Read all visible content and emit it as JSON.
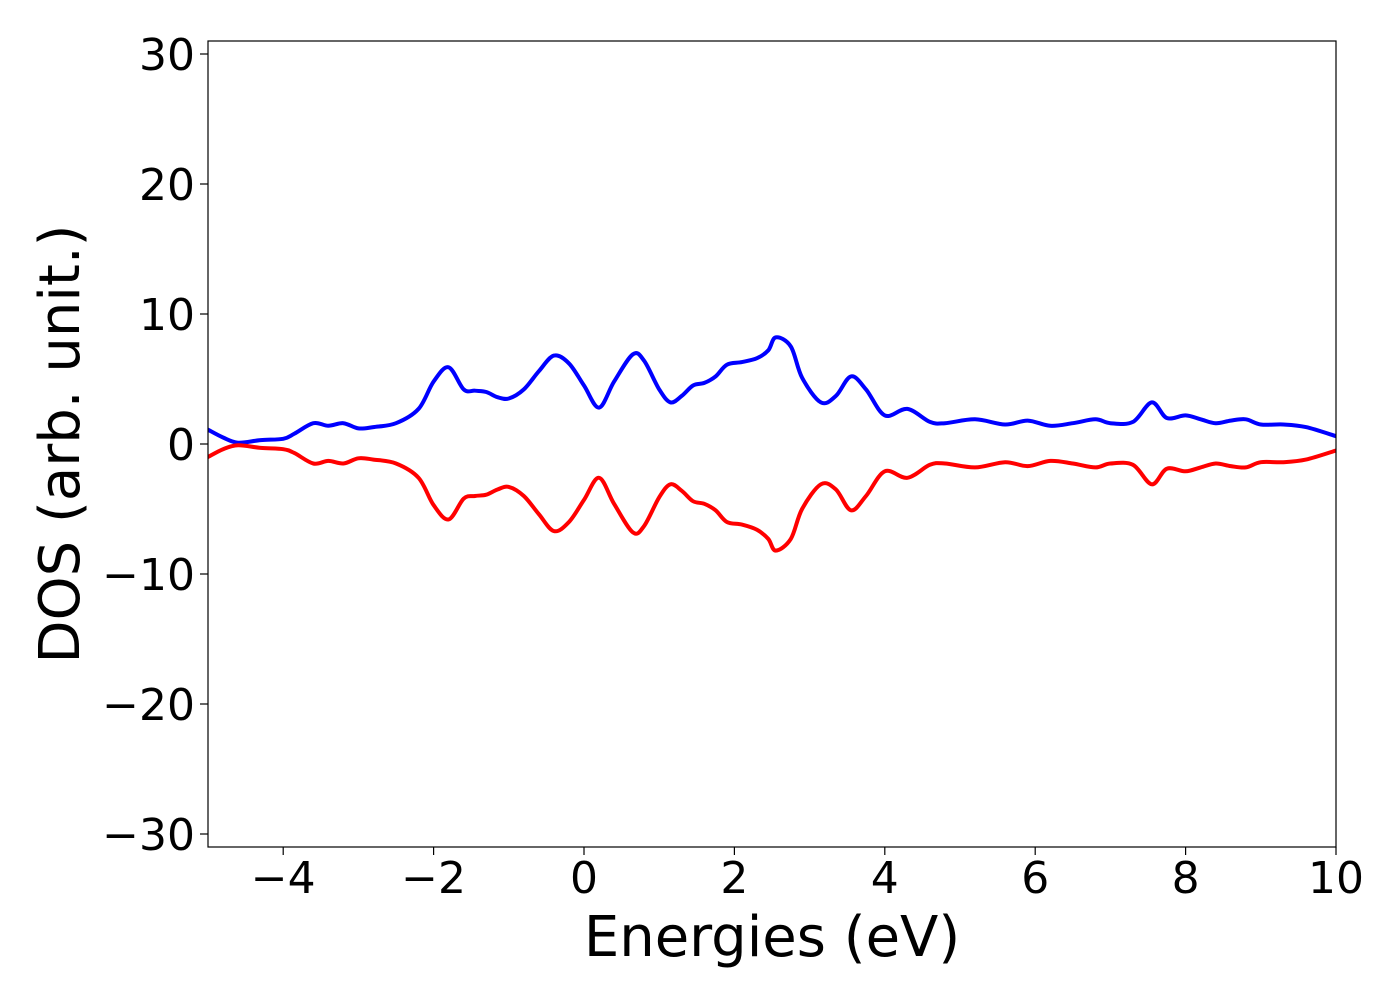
{
  "chart_data": {
    "type": "line",
    "title": "",
    "xlabel": "Energies (eV)",
    "ylabel": "DOS (arb. unit.)",
    "xlim": [
      -5,
      10
    ],
    "ylim": [
      -31,
      31
    ],
    "xticks": [
      -4,
      -2,
      0,
      2,
      4,
      6,
      8,
      10
    ],
    "xtick_labels": [
      "−4",
      "−2",
      "0",
      "2",
      "4",
      "6",
      "8",
      "10"
    ],
    "yticks": [
      -30,
      -20,
      -10,
      0,
      10,
      20,
      30
    ],
    "ytick_labels": [
      "−30",
      "−20",
      "−10",
      "0",
      "10",
      "20",
      "30"
    ],
    "grid": false,
    "legend": "none",
    "series": [
      {
        "color": "#0000ff",
        "x": [
          -5.0,
          -4.8,
          -4.6,
          -4.3,
          -4.0,
          -3.85,
          -3.6,
          -3.4,
          -3.2,
          -3.0,
          -2.8,
          -2.5,
          -2.2,
          -2.0,
          -1.8,
          -1.6,
          -1.45,
          -1.3,
          -1.15,
          -1.0,
          -0.8,
          -0.6,
          -0.4,
          -0.2,
          0.0,
          0.2,
          0.4,
          0.65,
          0.8,
          1.0,
          1.15,
          1.3,
          1.45,
          1.6,
          1.75,
          1.9,
          2.1,
          2.3,
          2.45,
          2.55,
          2.75,
          2.9,
          3.15,
          3.35,
          3.55,
          3.75,
          4.0,
          4.3,
          4.6,
          4.8,
          5.2,
          5.6,
          5.9,
          6.2,
          6.5,
          6.8,
          7.0,
          7.3,
          7.55,
          7.75,
          8.0,
          8.2,
          8.4,
          8.6,
          8.8,
          9.0,
          9.3,
          9.6,
          10.0
        ],
        "values": [
          1.1,
          0.5,
          0.1,
          0.3,
          0.4,
          0.8,
          1.6,
          1.4,
          1.6,
          1.2,
          1.3,
          1.6,
          2.7,
          4.8,
          5.9,
          4.2,
          4.1,
          4.0,
          3.6,
          3.5,
          4.2,
          5.6,
          6.8,
          6.2,
          4.5,
          2.8,
          4.8,
          6.9,
          6.4,
          4.2,
          3.2,
          3.7,
          4.5,
          4.7,
          5.2,
          6.1,
          6.3,
          6.6,
          7.2,
          8.2,
          7.5,
          5.1,
          3.2,
          3.7,
          5.2,
          4.2,
          2.2,
          2.7,
          1.7,
          1.6,
          1.9,
          1.5,
          1.8,
          1.4,
          1.6,
          1.9,
          1.6,
          1.7,
          3.2,
          2.0,
          2.2,
          1.9,
          1.6,
          1.8,
          1.9,
          1.5,
          1.5,
          1.3,
          0.6
        ]
      },
      {
        "color": "#ff0000",
        "x": [
          -5.0,
          -4.8,
          -4.6,
          -4.3,
          -4.0,
          -3.85,
          -3.6,
          -3.4,
          -3.2,
          -3.0,
          -2.8,
          -2.5,
          -2.2,
          -2.0,
          -1.8,
          -1.6,
          -1.45,
          -1.3,
          -1.15,
          -1.0,
          -0.8,
          -0.6,
          -0.4,
          -0.2,
          0.0,
          0.2,
          0.4,
          0.65,
          0.8,
          1.0,
          1.15,
          1.3,
          1.45,
          1.6,
          1.75,
          1.9,
          2.1,
          2.3,
          2.45,
          2.55,
          2.75,
          2.9,
          3.15,
          3.35,
          3.55,
          3.75,
          4.0,
          4.3,
          4.6,
          4.8,
          5.2,
          5.6,
          5.9,
          6.2,
          6.5,
          6.8,
          7.0,
          7.3,
          7.55,
          7.75,
          8.0,
          8.2,
          8.4,
          8.6,
          8.8,
          9.0,
          9.3,
          9.6,
          10.0
        ],
        "values": [
          -1.0,
          -0.4,
          -0.1,
          -0.3,
          -0.4,
          -0.7,
          -1.5,
          -1.3,
          -1.5,
          -1.1,
          -1.2,
          -1.5,
          -2.6,
          -4.7,
          -5.8,
          -4.2,
          -4.0,
          -3.9,
          -3.5,
          -3.3,
          -4.0,
          -5.4,
          -6.7,
          -6.0,
          -4.3,
          -2.6,
          -4.6,
          -6.8,
          -6.3,
          -4.1,
          -3.1,
          -3.6,
          -4.4,
          -4.6,
          -5.1,
          -6.0,
          -6.2,
          -6.6,
          -7.3,
          -8.2,
          -7.3,
          -5.0,
          -3.1,
          -3.5,
          -5.1,
          -4.0,
          -2.1,
          -2.6,
          -1.6,
          -1.5,
          -1.8,
          -1.4,
          -1.7,
          -1.3,
          -1.5,
          -1.8,
          -1.5,
          -1.6,
          -3.1,
          -1.9,
          -2.1,
          -1.8,
          -1.5,
          -1.7,
          -1.8,
          -1.4,
          -1.4,
          -1.2,
          -0.5
        ]
      }
    ]
  }
}
